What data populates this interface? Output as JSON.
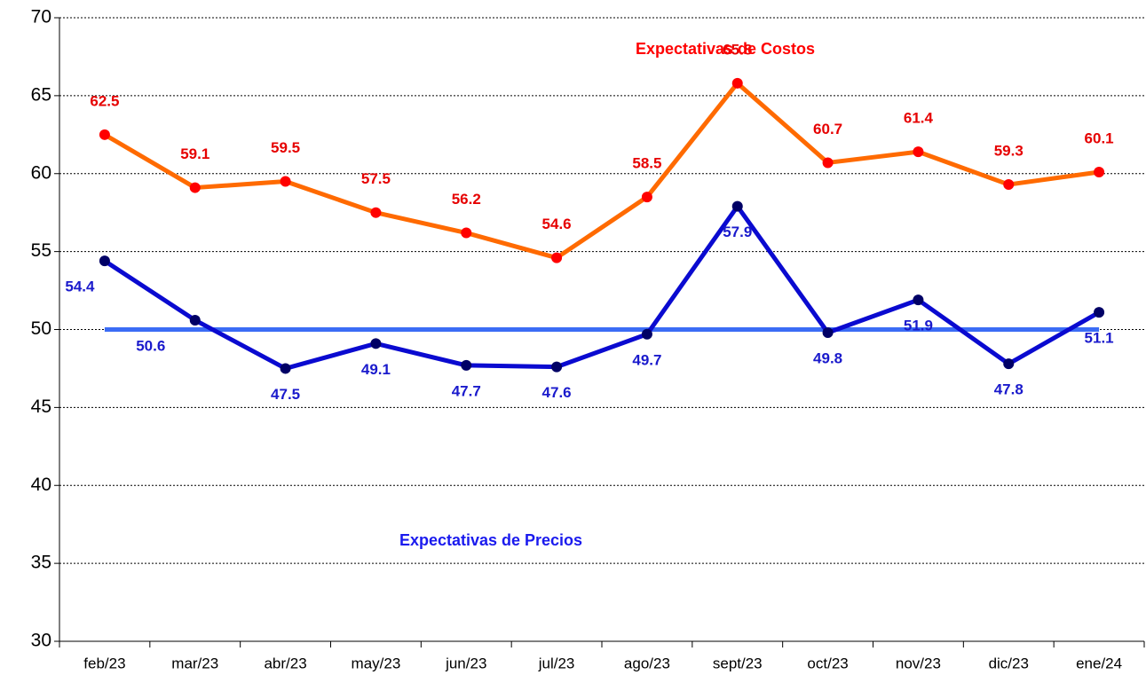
{
  "chart_data": {
    "type": "line",
    "categories": [
      "feb/23",
      "mar/23",
      "abr/23",
      "may/23",
      "jun/23",
      "jul/23",
      "ago/23",
      "sept/23",
      "oct/23",
      "nov/23",
      "dic/23",
      "ene/24"
    ],
    "series": [
      {
        "name": "Expectativas de Costos",
        "color": "#ff6a00",
        "marker_color": "#ff0000",
        "label_color": "#e60000",
        "values": [
          62.5,
          59.1,
          59.5,
          57.5,
          56.2,
          54.6,
          58.5,
          65.8,
          60.7,
          61.4,
          59.3,
          60.1
        ]
      },
      {
        "name": "Expectativas de Precios",
        "color": "#0a0ad0",
        "marker_color": "#000066",
        "label_color": "#1a1acc",
        "values": [
          54.4,
          50.6,
          47.5,
          49.1,
          47.7,
          47.6,
          49.7,
          57.9,
          49.8,
          51.9,
          47.8,
          51.1
        ]
      }
    ],
    "reference_line": {
      "value": 50,
      "color": "#3b6cf5"
    },
    "ylim": [
      30,
      70
    ],
    "yticks": [
      30,
      35,
      40,
      45,
      50,
      55,
      60,
      65,
      70
    ],
    "grid": true
  }
}
